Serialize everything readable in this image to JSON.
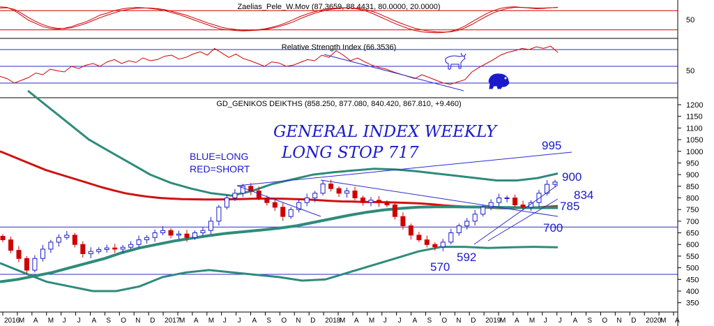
{
  "chart_data": [
    {
      "panel": "stochastic",
      "type": "line",
      "title": "Zaelias_Pele_W.Mov (87.3659, 88.4431, 80.0000, 20.0000)",
      "ytick_labels": [
        "50"
      ],
      "ylim": [
        0,
        100
      ],
      "levels": [
        80,
        20
      ],
      "series": [
        {
          "values": [
            92,
            90,
            80,
            65,
            50,
            40,
            30,
            25,
            22,
            25,
            30,
            38,
            45,
            55,
            66,
            72,
            80,
            85,
            88,
            90,
            89,
            87,
            84,
            80,
            74,
            68,
            60,
            52,
            44,
            36,
            28,
            22,
            20,
            18,
            17,
            18,
            20,
            23,
            28,
            34,
            42,
            52,
            62,
            70,
            77,
            82,
            86,
            88,
            89,
            88,
            85,
            80,
            72,
            62,
            52,
            42,
            33,
            25,
            18,
            14,
            12,
            11,
            12,
            15,
            22,
            32,
            45,
            58,
            70,
            80,
            87,
            91,
            92,
            90,
            88,
            86,
            87,
            89,
            90
          ]
        },
        {
          "values": [
            88,
            89,
            84,
            72,
            58,
            46,
            36,
            29,
            25,
            24,
            27,
            33,
            40,
            49,
            58,
            66,
            73,
            80,
            84,
            87,
            88,
            88,
            86,
            83,
            78,
            72,
            66,
            58,
            50,
            42,
            35,
            28,
            24,
            21,
            19,
            18,
            19,
            21,
            25,
            30,
            37,
            45,
            55,
            64,
            72,
            78,
            83,
            86,
            88,
            88,
            87,
            84,
            78,
            70,
            60,
            50,
            41,
            33,
            25,
            20,
            16,
            14,
            13,
            14,
            18,
            26,
            37,
            50,
            62,
            73,
            81,
            87,
            90,
            90,
            89,
            88,
            88,
            89,
            90
          ]
        }
      ]
    },
    {
      "panel": "rsi",
      "type": "line",
      "title": "Relative Strength Index (66.3536)",
      "ytick_labels": [
        "50"
      ],
      "ylim": [
        0,
        100
      ],
      "levels": [
        80,
        50,
        20
      ],
      "values": [
        32,
        28,
        20,
        25,
        30,
        38,
        35,
        45,
        42,
        40,
        50,
        46,
        52,
        55,
        50,
        58,
        62,
        55,
        60,
        57,
        65,
        60,
        62,
        68,
        70,
        63,
        66,
        72,
        76,
        70,
        82,
        74,
        66,
        72,
        64,
        60,
        55,
        50,
        58,
        56,
        50,
        52,
        57,
        62,
        60,
        70,
        66,
        78,
        70,
        60,
        65,
        58,
        52,
        48,
        45,
        40,
        36,
        32,
        28,
        35,
        30,
        25,
        20,
        18,
        22,
        26,
        40,
        48,
        55,
        62,
        70,
        75,
        78,
        82,
        80,
        85,
        82,
        86,
        75
      ]
    },
    {
      "panel": "price",
      "type": "candlestick",
      "title": "GD_GENIKOS DEIKTHS (858.250, 877.080, 840.420, 867.810, +9.460)",
      "ylim": [
        310,
        1230
      ],
      "yticks": [
        350,
        400,
        450,
        500,
        550,
        600,
        650,
        700,
        750,
        800,
        850,
        900,
        950,
        1000,
        1050,
        1100,
        1150,
        1200
      ],
      "x_labels": [
        "2016",
        "M",
        "A",
        "M",
        "J",
        "J",
        "A",
        "S",
        "O",
        "N",
        "D",
        "2017",
        "M",
        "A",
        "M",
        "J",
        "J",
        "A",
        "S",
        "O",
        "N",
        "D",
        "2018",
        "M",
        "A",
        "M",
        "J",
        "J",
        "A",
        "S",
        "O",
        "N",
        "D",
        "2019",
        "M",
        "A",
        "M",
        "J",
        "J",
        "A",
        "S",
        "O",
        "N",
        "D",
        "2020",
        "M",
        "A"
      ],
      "close": [
        620,
        575,
        540,
        490,
        540,
        580,
        610,
        630,
        640,
        600,
        560,
        570,
        578,
        585,
        580,
        588,
        600,
        620,
        630,
        650,
        660,
        640,
        645,
        630,
        650,
        660,
        700,
        760,
        800,
        820,
        850,
        830,
        800,
        780,
        760,
        720,
        750,
        780,
        800,
        820,
        860,
        840,
        820,
        830,
        800,
        780,
        790,
        780,
        770,
        720,
        680,
        640,
        620,
        600,
        590,
        610,
        650,
        680,
        700,
        730,
        760,
        780,
        800,
        800,
        770,
        760,
        780,
        820,
        858,
        868
      ],
      "ma_red": [
        1000,
        980,
        960,
        940,
        920,
        905,
        890,
        875,
        860,
        845,
        832,
        820,
        812,
        805,
        800,
        797,
        795,
        794,
        793,
        793,
        794,
        795,
        796,
        797,
        797,
        796,
        795,
        793,
        790,
        787,
        785,
        784,
        783,
        782,
        781,
        780,
        778,
        776,
        772,
        768,
        765,
        762,
        760,
        758,
        756,
        756,
        757,
        759,
        762,
        765
      ],
      "ma_green": [
        440,
        450,
        465,
        480,
        500,
        520,
        540,
        565,
        585,
        600,
        615,
        627,
        638,
        648,
        655,
        662,
        670,
        680,
        695,
        710,
        725,
        738,
        748,
        755,
        760,
        762,
        762,
        761,
        760,
        759,
        758,
        758,
        758
      ],
      "envelope_upper": [
        1260,
        1190,
        1120,
        1050,
        1000,
        950,
        900,
        865,
        840,
        820,
        810,
        830,
        860,
        880,
        900,
        910,
        918,
        925,
        922,
        915,
        905,
        895,
        885,
        875,
        875,
        885,
        905
      ],
      "envelope_lower": [
        520,
        480,
        440,
        420,
        400,
        400,
        420,
        460,
        480,
        490,
        480,
        470,
        460,
        445,
        450,
        480,
        510,
        540,
        570,
        590,
        590,
        585,
        588,
        590,
        588
      ],
      "annotations": {
        "title_handwritten": "GENERAL INDEX WEEKLY",
        "subtitle_handwritten": "LONG STOP 717",
        "legend_long": "BLUE=LONG",
        "legend_short": "RED=SHORT",
        "labels": [
          "995",
          "900",
          "834",
          "785",
          "700",
          "592",
          "570"
        ]
      },
      "levels": [
        675,
        472
      ],
      "colors": {
        "up_candle": "#1a1acc",
        "down_candle": "#d00000",
        "ma_red": "#d01010",
        "ma_green": "#2e8b7a",
        "envelope": "#2e8b7a",
        "level_lines": "#2b2bcc"
      }
    }
  ]
}
